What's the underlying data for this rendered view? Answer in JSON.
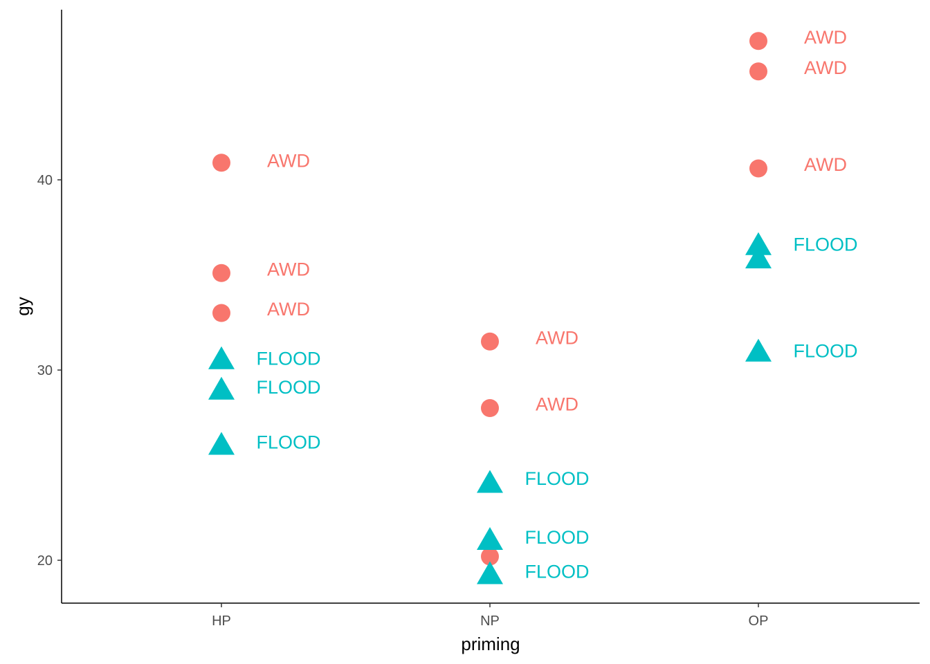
{
  "chart_data": {
    "type": "scatter",
    "title": "",
    "xlabel": "priming",
    "ylabel": "gy",
    "categories": [
      "HP",
      "NP",
      "OP"
    ],
    "y_ticks": [
      20,
      30,
      40
    ],
    "ylim": [
      17.7,
      49.1
    ],
    "grid": false,
    "legend": "none",
    "groups": [
      {
        "group_label": "AWD",
        "color": "#F8766D",
        "shape": "circle",
        "points": [
          {
            "x": "HP",
            "y": 40.9
          },
          {
            "x": "HP",
            "y": 35.1
          },
          {
            "x": "HP",
            "y": 33.0
          },
          {
            "x": "NP",
            "y": 31.5
          },
          {
            "x": "NP",
            "y": 28.0
          },
          {
            "x": "NP",
            "y": 20.2
          },
          {
            "x": "OP",
            "y": 47.3
          },
          {
            "x": "OP",
            "y": 45.7
          },
          {
            "x": "OP",
            "y": 40.6
          }
        ]
      },
      {
        "group_label": "FLOOD",
        "color": "#00BFC4",
        "shape": "triangle",
        "points": [
          {
            "x": "HP",
            "y": 30.5
          },
          {
            "x": "HP",
            "y": 28.9
          },
          {
            "x": "HP",
            "y": 26.0
          },
          {
            "x": "NP",
            "y": 24.0
          },
          {
            "x": "NP",
            "y": 21.0
          },
          {
            "x": "NP",
            "y": 19.2
          },
          {
            "x": "OP",
            "y": 36.5
          },
          {
            "x": "OP",
            "y": 35.8
          },
          {
            "x": "OP",
            "y": 30.9
          }
        ]
      }
    ],
    "text_labels": [
      {
        "text": "AWD",
        "x": "HP",
        "y": 41.0,
        "color": "#F8766D"
      },
      {
        "text": "AWD",
        "x": "HP",
        "y": 35.3,
        "color": "#F8766D"
      },
      {
        "text": "AWD",
        "x": "HP",
        "y": 33.2,
        "color": "#F8766D"
      },
      {
        "text": "FLOOD",
        "x": "HP",
        "y": 30.6,
        "color": "#00BFC4"
      },
      {
        "text": "FLOOD",
        "x": "HP",
        "y": 29.1,
        "color": "#00BFC4"
      },
      {
        "text": "FLOOD",
        "x": "HP",
        "y": 26.2,
        "color": "#00BFC4"
      },
      {
        "text": "AWD",
        "x": "NP",
        "y": 31.7,
        "color": "#F8766D"
      },
      {
        "text": "AWD",
        "x": "NP",
        "y": 28.2,
        "color": "#F8766D"
      },
      {
        "text": "FLOOD",
        "x": "NP",
        "y": 24.3,
        "color": "#00BFC4"
      },
      {
        "text": "FLOOD",
        "x": "NP",
        "y": 21.2,
        "color": "#00BFC4"
      },
      {
        "text": "FLOOD",
        "x": "NP",
        "y": 19.4,
        "color": "#00BFC4"
      },
      {
        "text": "AWD",
        "x": "OP",
        "y": 47.5,
        "color": "#F8766D"
      },
      {
        "text": "AWD",
        "x": "OP",
        "y": 45.9,
        "color": "#F8766D"
      },
      {
        "text": "AWD",
        "x": "OP",
        "y": 40.8,
        "color": "#F8766D"
      },
      {
        "text": "FLOOD",
        "x": "OP",
        "y": 36.6,
        "color": "#00BFC4"
      },
      {
        "text": "FLOOD",
        "x": "OP",
        "y": 31.0,
        "color": "#00BFC4"
      }
    ]
  }
}
